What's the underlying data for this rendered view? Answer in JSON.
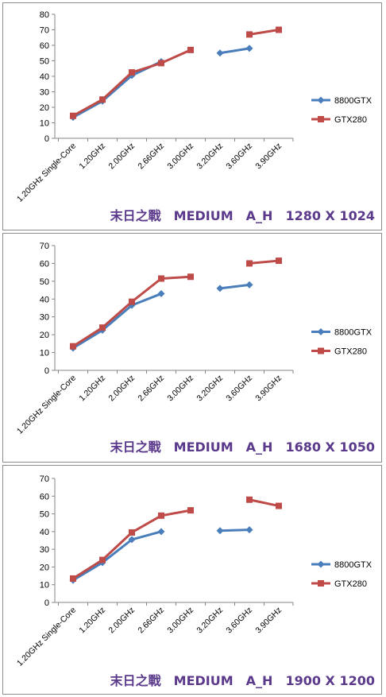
{
  "colors": {
    "s1": "#4a7ebb",
    "s2": "#be4b48",
    "grid": "#858585",
    "caption": "#5b3a8c"
  },
  "chart_data": [
    {
      "type": "line",
      "title": "末日之戰　MEDIUM　A_H　1280 X 1024",
      "categories": [
        "1.20GHz Single-Core",
        "1.20GHz",
        "2.00GHz",
        "2.66GHz",
        "3.00GHz",
        "3.20GHz",
        "3.60GHz",
        "3.90GHz"
      ],
      "ylim": [
        0,
        80
      ],
      "ystep": 10,
      "grid": false,
      "legend": "right",
      "series": [
        {
          "name": "8800GTX",
          "values": [
            13.5,
            24,
            40.5,
            49.5,
            null,
            55,
            58,
            null
          ]
        },
        {
          "name": "GTX280",
          "values": [
            14.5,
            25,
            42.5,
            48.5,
            57,
            null,
            67,
            70
          ]
        }
      ]
    },
    {
      "type": "line",
      "title": "末日之戰　MEDIUM　A_H　1680 X 1050",
      "categories": [
        "1.20GHz Single-Core",
        "1.20GHz",
        "2.00GHz",
        "2.66GHz",
        "3.00GHz",
        "3.20GHz",
        "3.60GHz",
        "3.90GHz"
      ],
      "ylim": [
        0,
        70
      ],
      "ystep": 10,
      "grid": false,
      "legend": "right",
      "series": [
        {
          "name": "8800GTX",
          "values": [
            12.5,
            22.5,
            36.5,
            43,
            null,
            46,
            48,
            null
          ]
        },
        {
          "name": "GTX280",
          "values": [
            13.5,
            24,
            38.5,
            51.5,
            52.5,
            null,
            60,
            61.5
          ]
        }
      ]
    },
    {
      "type": "line",
      "title": "末日之戰　MEDIUM　A_H　1900 X 1200",
      "categories": [
        "1.20GHz Single-Core",
        "1.20GHz",
        "2.00GHz",
        "2.66GHz",
        "3.00GHz",
        "3.20GHz",
        "3.60GHz",
        "3.90GHz"
      ],
      "ylim": [
        0,
        70
      ],
      "ystep": 10,
      "grid": false,
      "legend": "right",
      "series": [
        {
          "name": "8800GTX",
          "values": [
            12.5,
            22.5,
            35.5,
            40,
            null,
            40.5,
            41,
            null
          ]
        },
        {
          "name": "GTX280",
          "values": [
            13.5,
            24,
            39.5,
            49,
            52,
            null,
            58,
            54.5
          ]
        }
      ]
    }
  ]
}
